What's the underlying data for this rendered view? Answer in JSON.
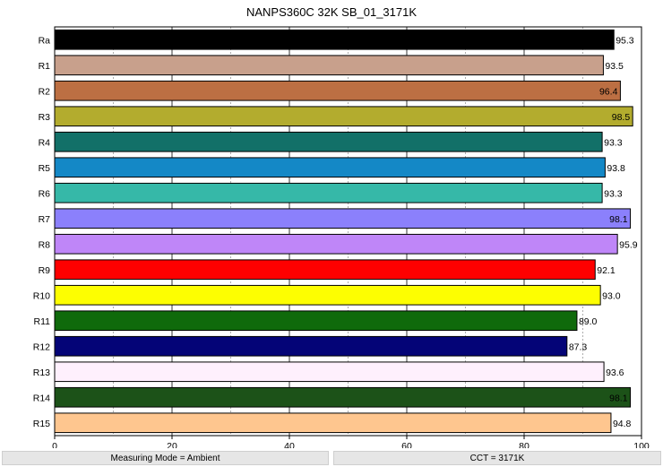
{
  "chart_data": {
    "type": "bar",
    "orientation": "horizontal",
    "title": "NANPS360C 32K SB_01_3171K",
    "categories": [
      "Ra",
      "R1",
      "R2",
      "R3",
      "R4",
      "R5",
      "R6",
      "R7",
      "R8",
      "R9",
      "R10",
      "R11",
      "R12",
      "R13",
      "R14",
      "R15"
    ],
    "values": [
      95.3,
      93.5,
      96.4,
      98.5,
      93.3,
      93.8,
      93.3,
      98.1,
      95.9,
      92.1,
      93.0,
      89.0,
      87.3,
      93.6,
      98.1,
      94.8
    ],
    "value_labels": [
      "95.3",
      "93.5",
      "96.4",
      "98.5",
      "93.3",
      "93.8",
      "93.3",
      "98.1",
      "95.9",
      "92.1",
      "93.0",
      "89.0",
      "87.3",
      "93.6",
      "98.1",
      "94.8"
    ],
    "colors": [
      "#000000",
      "#c8a08c",
      "#bc6f43",
      "#b3ac2e",
      "#127068",
      "#1488c6",
      "#36b8a8",
      "#8b80fc",
      "#bf86f8",
      "#fe0000",
      "#fdfe01",
      "#0f6a0b",
      "#040477",
      "#fef0fd",
      "#1c5218",
      "#fec68f"
    ],
    "label_inside": [
      false,
      false,
      true,
      true,
      false,
      false,
      false,
      true,
      false,
      false,
      false,
      false,
      false,
      false,
      true,
      false
    ],
    "xlim": [
      0,
      100
    ],
    "xticks": [
      "0",
      "20",
      "40",
      "60",
      "80",
      "100"
    ],
    "grid": true,
    "xlabel": "",
    "ylabel": ""
  },
  "footer": {
    "left": "Measuring Mode = Ambient",
    "right": "CCT = 3171K"
  }
}
